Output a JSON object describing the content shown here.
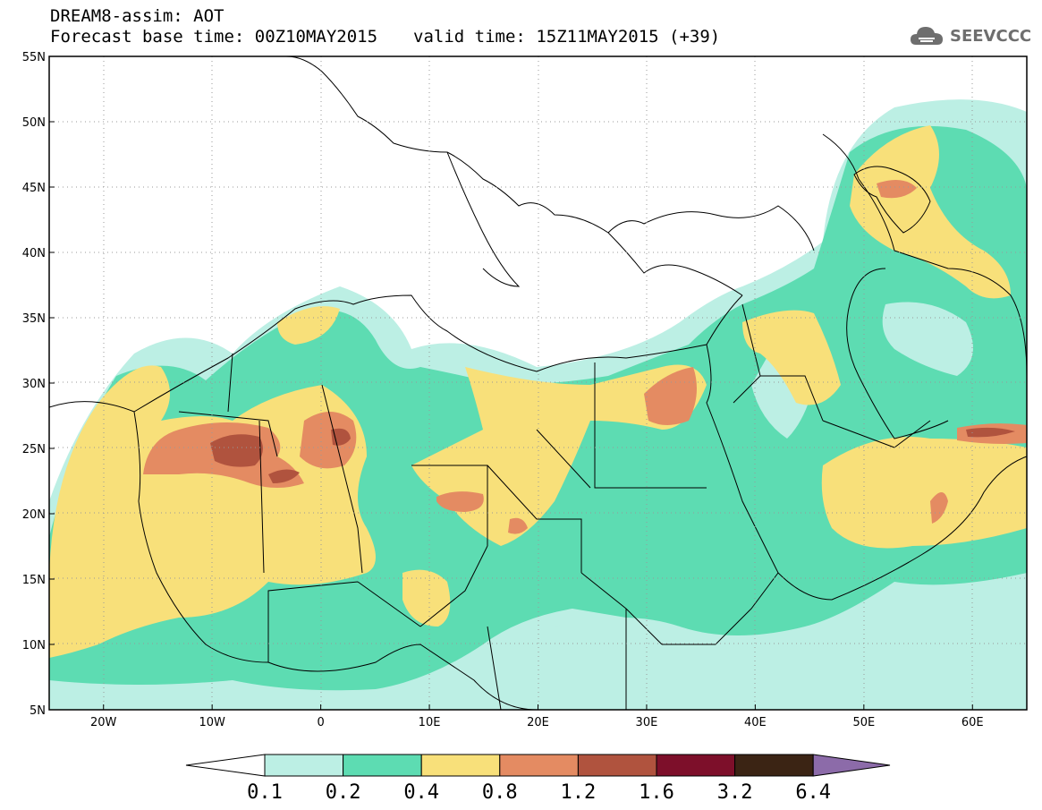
{
  "header": {
    "title": "DREAM8-assim: AOT",
    "base_time": "Forecast base time: 00Z10MAY2015",
    "valid_time": "valid time: 15Z11MAY2015 (+39)"
  },
  "logo": {
    "text": "SEEVCCC",
    "icon": "cloud-icon",
    "color": "#6e6e6e"
  },
  "map": {
    "lon_range": [
      -25,
      65
    ],
    "lat_range": [
      5,
      55
    ],
    "lat_labels": [
      "5N",
      "10N",
      "15N",
      "20N",
      "25N",
      "30N",
      "35N",
      "40N",
      "45N",
      "50N",
      "55N"
    ],
    "lon_labels": [
      "20W",
      "10W",
      "0",
      "10E",
      "20E",
      "30E",
      "40E",
      "50E",
      "60E"
    ],
    "lon_ticks": [
      -20,
      -10,
      0,
      10,
      20,
      30,
      40,
      50,
      60
    ],
    "lat_ticks": [
      5,
      10,
      15,
      20,
      25,
      30,
      35,
      40,
      45,
      50,
      55
    ]
  },
  "colorbar": {
    "labels": [
      "0.1",
      "0.2",
      "0.4",
      "0.8",
      "1.2",
      "1.6",
      "3.2",
      "6.4"
    ],
    "colors": [
      "#ffffff",
      "#bcefe4",
      "#5ddcb2",
      "#f8e07a",
      "#e48b62",
      "#b0533e",
      "#7d0f2a",
      "#3b2414",
      "#8c6ba9"
    ]
  }
}
